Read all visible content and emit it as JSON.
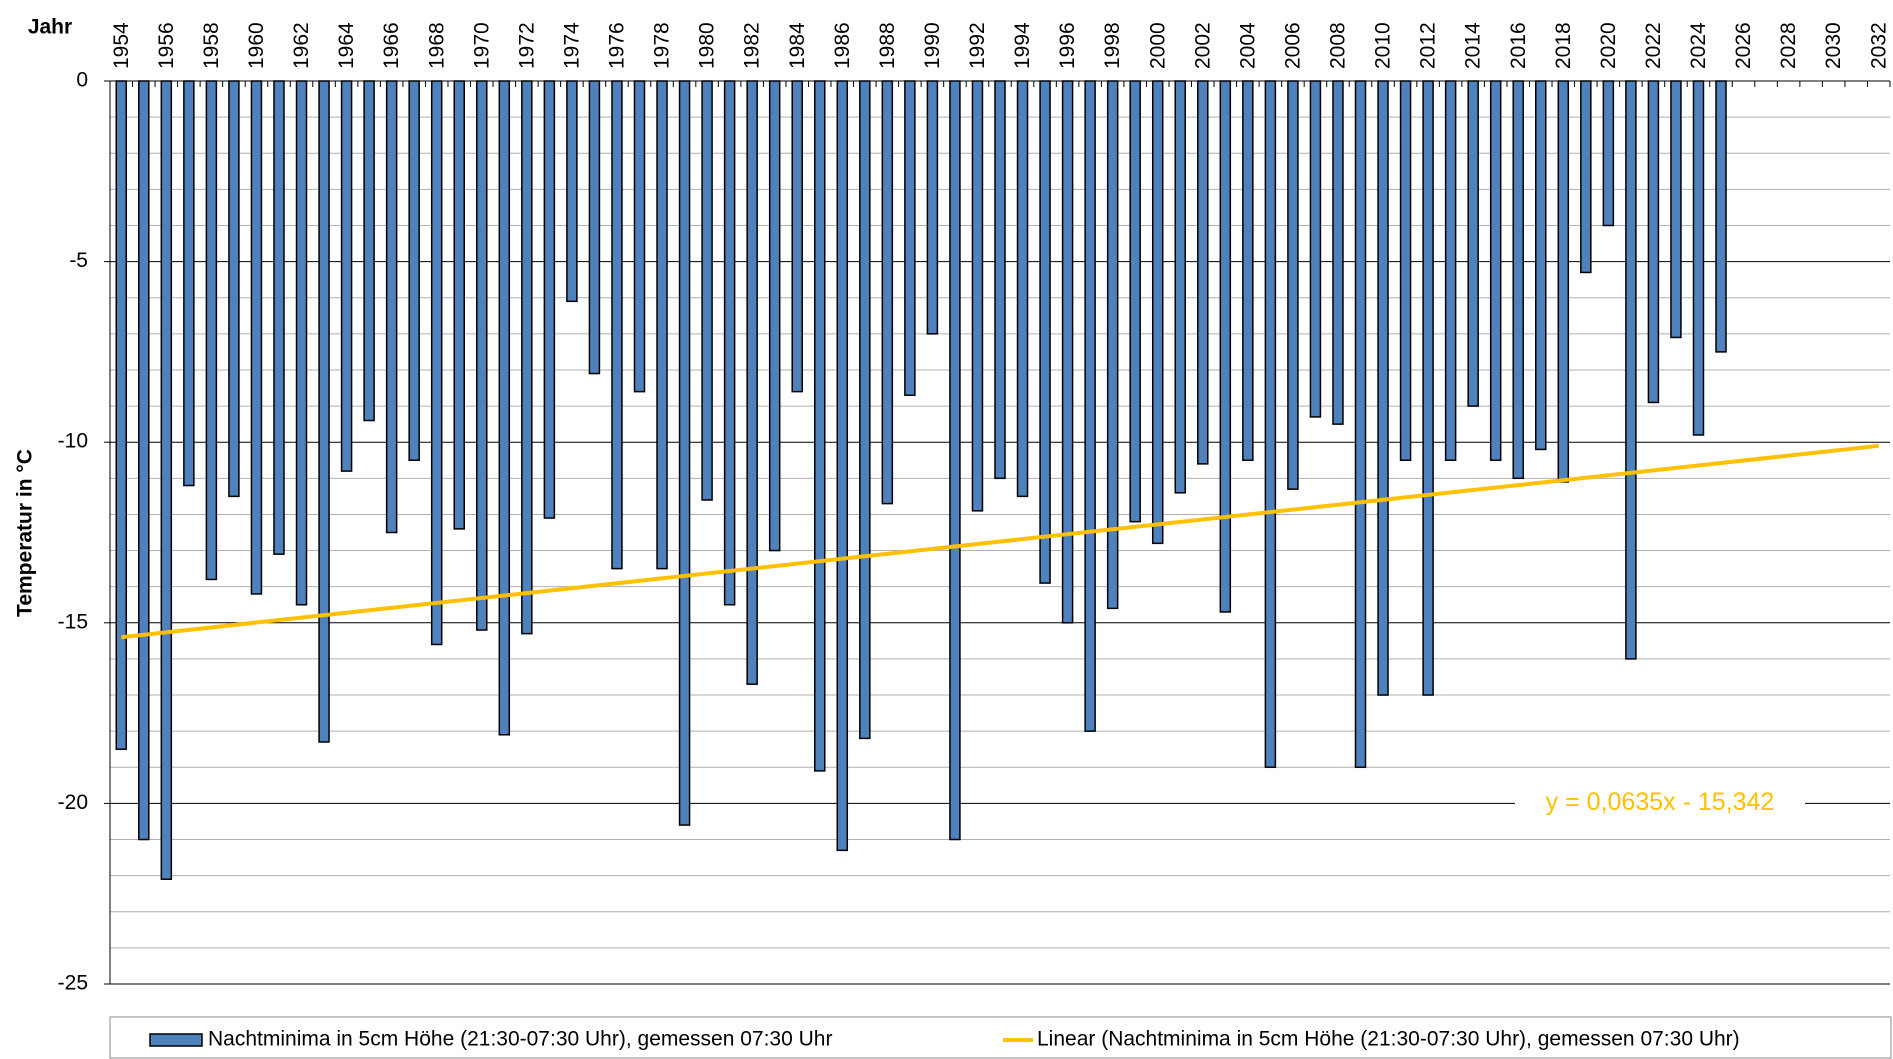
{
  "chart_data": {
    "type": "bar",
    "x_label": "Jahr",
    "y_label": "Temperatur in °C",
    "categories": [
      "1954",
      null,
      "1956",
      null,
      "1958",
      null,
      "1960",
      null,
      "1962",
      null,
      "1964",
      null,
      "1966",
      null,
      "1968",
      null,
      "1970",
      null,
      "1972",
      null,
      "1974",
      null,
      "1976",
      null,
      "1978",
      null,
      "1980",
      null,
      "1982",
      null,
      "1984",
      null,
      "1986",
      null,
      "1988",
      null,
      "1990",
      null,
      "1992",
      null,
      "1994",
      null,
      "1996",
      null,
      "1998",
      null,
      "2000",
      null,
      "2002",
      null,
      "2004",
      null,
      "2006",
      null,
      "2008",
      null,
      "2010",
      null,
      "2012",
      null,
      "2014",
      null,
      "2016",
      null,
      "2018",
      null,
      "2020",
      null,
      "2022",
      null,
      "2024",
      null,
      "2026",
      null,
      "2028",
      null,
      "2030",
      null,
      "2032"
    ],
    "series": [
      {
        "name": "Nachtminima in 5cm Höhe (21:30-07:30 Uhr), gemessen 07:30 Uhr",
        "color": "#4f81bd",
        "values": [
          -18.5,
          -21.0,
          -22.1,
          -11.2,
          -13.8,
          -11.5,
          -14.2,
          -13.1,
          -14.5,
          -18.3,
          -10.8,
          -9.4,
          -12.5,
          -10.5,
          -15.6,
          -12.4,
          -15.2,
          -18.1,
          -15.3,
          -12.1,
          -6.1,
          -8.1,
          -13.5,
          -8.6,
          -13.5,
          -20.6,
          -11.6,
          -14.5,
          -16.7,
          -13.0,
          -8.6,
          -19.1,
          -21.3,
          -18.2,
          -11.7,
          -8.7,
          -7.0,
          -21.0,
          -11.9,
          -11.0,
          -11.5,
          -13.9,
          -15.0,
          -18.0,
          -14.6,
          -12.2,
          -12.8,
          -11.4,
          -10.6,
          -14.7,
          -10.5,
          -19.0,
          -11.3,
          -9.3,
          -9.5,
          -19.0,
          -17.0,
          -10.5,
          -17.0,
          -10.5,
          -9.0,
          -10.5,
          -11.0,
          -10.2,
          -11.1,
          -5.3,
          -4.0,
          -16.0,
          -8.9,
          -7.1,
          -9.8,
          -7.5,
          null,
          null,
          null,
          null,
          null,
          null,
          null
        ]
      }
    ],
    "trend": {
      "name": "Linear (Nachtminima in 5cm Höhe (21:30-07:30 Uhr), gemessen 07:30 Uhr)",
      "color": "#ffc000",
      "equation": "y = 0,0635x - 15,342",
      "start": -15.4,
      "end": -10.1
    },
    "ylim": [
      -25,
      0
    ],
    "yticks": [
      -25,
      -20,
      -15,
      -10,
      -5,
      0
    ],
    "grid": true
  }
}
